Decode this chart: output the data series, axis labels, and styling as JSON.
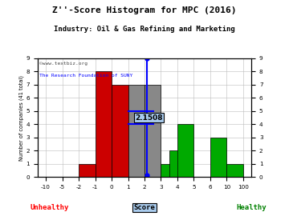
{
  "title": "Z''-Score Histogram for MPC (2016)",
  "subtitle": "Industry: Oil & Gas Refining and Marketing",
  "watermark1": "©www.textbiz.org",
  "watermark2": "The Research Foundation of SUNY",
  "xlabel_score": "Score",
  "xlabel_unhealthy": "Unhealthy",
  "xlabel_healthy": "Healthy",
  "ylabel": "Number of companies (41 total)",
  "mpc_score": 2.1508,
  "mpc_label": "2.1508",
  "ylim": [
    0,
    9
  ],
  "bar_configs": [
    [
      -2.0,
      -1.0,
      1,
      "#cc0000"
    ],
    [
      -1.0,
      0.0,
      8,
      "#cc0000"
    ],
    [
      0.0,
      1.0,
      7,
      "#cc0000"
    ],
    [
      1.0,
      2.0,
      7,
      "#888888"
    ],
    [
      2.0,
      3.0,
      7,
      "#888888"
    ],
    [
      3.0,
      4.0,
      1,
      "#00aa00"
    ],
    [
      3.5,
      4.5,
      2,
      "#00aa00"
    ],
    [
      4.0,
      5.0,
      4,
      "#00aa00"
    ],
    [
      6.0,
      10.0,
      3,
      "#00aa00"
    ],
    [
      10.0,
      100.0,
      1,
      "#00aa00"
    ]
  ],
  "breakpoints": [
    -10,
    -5,
    -2,
    -1,
    0,
    1,
    2,
    3,
    4,
    5,
    6,
    10,
    100
  ],
  "display": [
    0,
    1,
    2,
    3,
    4,
    5,
    6,
    7,
    8,
    9,
    10,
    11,
    12
  ],
  "xtick_labels": [
    "-10",
    "-5",
    "-2",
    "-1",
    "0",
    "1",
    "2",
    "3",
    "4",
    "5",
    "6",
    "10",
    "100"
  ],
  "ytick_positions": [
    0,
    1,
    2,
    3,
    4,
    5,
    6,
    7,
    8,
    9
  ],
  "ytick_labels": [
    "0",
    "1",
    "2",
    "3",
    "4",
    "5",
    "6",
    "7",
    "8",
    "9"
  ],
  "bg_color": "#ffffff",
  "grid_color": "#bbbbbb",
  "xlim": [
    -0.5,
    12.5
  ]
}
